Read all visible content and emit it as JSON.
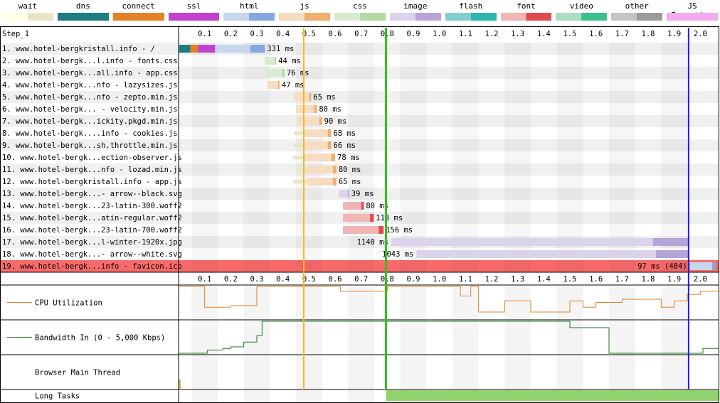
{
  "legend": [
    {
      "label": "wait",
      "colors": [
        "#FFFEE7",
        "#E8E6C4"
      ]
    },
    {
      "label": "dns",
      "colors": [
        "#1F7C83",
        "#1F7C83"
      ]
    },
    {
      "label": "connect",
      "colors": [
        "#E58226",
        "#E58226"
      ]
    },
    {
      "label": "ssl",
      "colors": [
        "#C141CD",
        "#C141CD"
      ]
    },
    {
      "label": "html",
      "colors": [
        "#C5D6EE",
        "#82A9E0"
      ]
    },
    {
      "label": "js",
      "colors": [
        "#F6DCC0",
        "#F2AE6C"
      ]
    },
    {
      "label": "css",
      "colors": [
        "#D9ECD2",
        "#B2D9A4"
      ]
    },
    {
      "label": "image",
      "colors": [
        "#DBD2EC",
        "#B6A4D9"
      ]
    },
    {
      "label": "flash",
      "colors": [
        "#7FD0CB",
        "#2EB5AD"
      ]
    },
    {
      "label": "font",
      "colors": [
        "#F0B5B5",
        "#E04C4C"
      ]
    },
    {
      "label": "video",
      "colors": [
        "#A9DEC2",
        "#3CC08C"
      ]
    },
    {
      "label": "other",
      "colors": [
        "#C4C4C4",
        "#9B9B9B"
      ]
    },
    {
      "label": "JS Execution",
      "colors": [
        "#F4A9F1",
        "#F4A9F1"
      ]
    }
  ],
  "step_label": "Step_1",
  "chart_data": {
    "type": "waterfall",
    "x_ticks": [
      0.1,
      0.2,
      0.3,
      0.4,
      0.5,
      0.6,
      0.7,
      0.8,
      0.9,
      1.0,
      1.1,
      1.2,
      1.3,
      1.4,
      1.5,
      1.6,
      1.7,
      1.8,
      1.9,
      2.0
    ],
    "x_range": [
      0,
      2.07
    ],
    "x_unit": "s",
    "markers": [
      {
        "time": 0.48,
        "color": "#F9BB1B"
      },
      {
        "time": 0.795,
        "color": "#2DC31F"
      },
      {
        "time": 1.955,
        "color": "#1A1AE6"
      }
    ],
    "requests": [
      {
        "label": "1. www.hotel-bergkristall.info - /",
        "type": "html",
        "start": 0.0,
        "end": 0.331,
        "duration": "331 ms",
        "pre": [
          {
            "t": "dns",
            "s": 0.0,
            "e": 0.045
          },
          {
            "t": "connect",
            "s": 0.045,
            "e": 0.075
          },
          {
            "t": "ssl",
            "s": 0.075,
            "e": 0.14
          }
        ],
        "dl": 0.275
      },
      {
        "label": "2. www.hotel-bergk...l.info - fonts.css",
        "type": "css",
        "start": 0.33,
        "end": 0.374,
        "duration": "44 ms"
      },
      {
        "label": "3. www.hotel-bergk...all.info - app.css",
        "type": "css",
        "start": 0.33,
        "end": 0.406,
        "duration": "76 ms"
      },
      {
        "label": "4. www.hotel-bergk...nfo - lazysizes.js",
        "type": "js",
        "start": 0.34,
        "end": 0.387,
        "duration": "47 ms"
      },
      {
        "label": "5. www.hotel-bergk...nfo - zepto.min.js",
        "type": "js",
        "start": 0.443,
        "end": 0.508,
        "duration": "65 ms"
      },
      {
        "label": "6. www.hotel-bergk... - velocity.min.js",
        "type": "js",
        "start": 0.45,
        "end": 0.53,
        "duration": "80 ms"
      },
      {
        "label": "7. www.hotel-bergk...ickity.pkgd.min.js",
        "type": "js",
        "start": 0.46,
        "end": 0.55,
        "duration": "90 ms"
      },
      {
        "label": "8. www.hotel-bergk....info - cookies.js",
        "type": "js",
        "start": 0.48,
        "end": 0.585,
        "duration": "68 ms",
        "wait": 0.037
      },
      {
        "label": "9. www.hotel-bergk...sh.throttle.min.js",
        "type": "js",
        "start": 0.48,
        "end": 0.585,
        "duration": "66 ms",
        "wait": 0.039
      },
      {
        "label": "10. www.hotel-bergk...ection-observer.js",
        "type": "js",
        "start": 0.48,
        "end": 0.6,
        "duration": "78 ms",
        "wait": 0.042
      },
      {
        "label": "11. www.hotel-bergk...nfo - lozad.min.js",
        "type": "js",
        "start": 0.49,
        "end": 0.605,
        "duration": "80 ms",
        "wait": 0.035
      },
      {
        "label": "12. www.hotel-bergkristall.info - app.js",
        "type": "js",
        "start": 0.49,
        "end": 0.605,
        "duration": "65 ms",
        "wait": 0.05
      },
      {
        "label": "13. www.hotel-bergk...- arrow--black.svg",
        "type": "image",
        "start": 0.615,
        "end": 0.654,
        "duration": "39 ms"
      },
      {
        "label": "14. www.hotel-bergk...23-latin-300.woff2",
        "type": "font",
        "start": 0.63,
        "end": 0.71,
        "duration": "80 ms"
      },
      {
        "label": "15. www.hotel-bergk...atin-regular.woff2",
        "type": "font",
        "start": 0.63,
        "end": 0.748,
        "duration": "118 ms"
      },
      {
        "label": "16. www.hotel-bergk...23-latin-700.woff2",
        "type": "font",
        "start": 0.63,
        "end": 0.786,
        "duration": "156 ms"
      },
      {
        "label": "17. www.hotel-bergk...l-winter-1920x.jpg",
        "type": "image",
        "start": 0.815,
        "end": 1.955,
        "duration": "1140 ms",
        "label_left": true
      },
      {
        "label": "18. www.hotel-bergk...- arrow--white.svg",
        "type": "image",
        "start": 0.912,
        "end": 1.955,
        "duration": "1043 ms",
        "label_left": true
      },
      {
        "label": "19. www.hotel-bergk...info - favicon.ico",
        "type": "html",
        "start": 1.96,
        "end": 2.057,
        "duration": "97 ms (404)",
        "label_left": true,
        "error": true
      }
    ],
    "panels": [
      {
        "label": "CPU Utilization",
        "color": "#E58226"
      },
      {
        "label": "Bandwidth In (0 - 5,000 Kbps)",
        "color": "#1E7A1E"
      },
      {
        "label": "Browser Main Thread",
        "color": "#E5A430"
      },
      {
        "label": "Long Tasks",
        "color": "#92D36F"
      }
    ],
    "cpu": [
      [
        0.0,
        1.0
      ],
      [
        0.05,
        1.0
      ],
      [
        0.1,
        0.35
      ],
      [
        0.2,
        0.4
      ],
      [
        0.3,
        1.0
      ],
      [
        0.62,
        0.85
      ],
      [
        0.8,
        1.0
      ],
      [
        1.08,
        0.7
      ],
      [
        1.12,
        1.0
      ],
      [
        1.15,
        0.2
      ],
      [
        1.25,
        0.55
      ],
      [
        1.35,
        0.2
      ],
      [
        1.5,
        0.55
      ],
      [
        1.55,
        0.35
      ],
      [
        1.6,
        0.5
      ],
      [
        1.7,
        0.6
      ],
      [
        1.85,
        0.35
      ],
      [
        1.9,
        0.55
      ],
      [
        1.95,
        0.75
      ],
      [
        2.0,
        0.85
      ],
      [
        2.07,
        0.85
      ]
    ],
    "bandwidth": [
      [
        0.0,
        0.0
      ],
      [
        0.11,
        0.1
      ],
      [
        0.17,
        0.15
      ],
      [
        0.2,
        0.2
      ],
      [
        0.25,
        0.35
      ],
      [
        0.3,
        0.55
      ],
      [
        0.32,
        1.0
      ],
      [
        1.5,
        0.8
      ],
      [
        1.65,
        0.0
      ],
      [
        2.0,
        0.0
      ],
      [
        2.01,
        0.15
      ],
      [
        2.07,
        0.15
      ]
    ],
    "long_tasks": [
      [
        0.795,
        2.07
      ]
    ]
  }
}
